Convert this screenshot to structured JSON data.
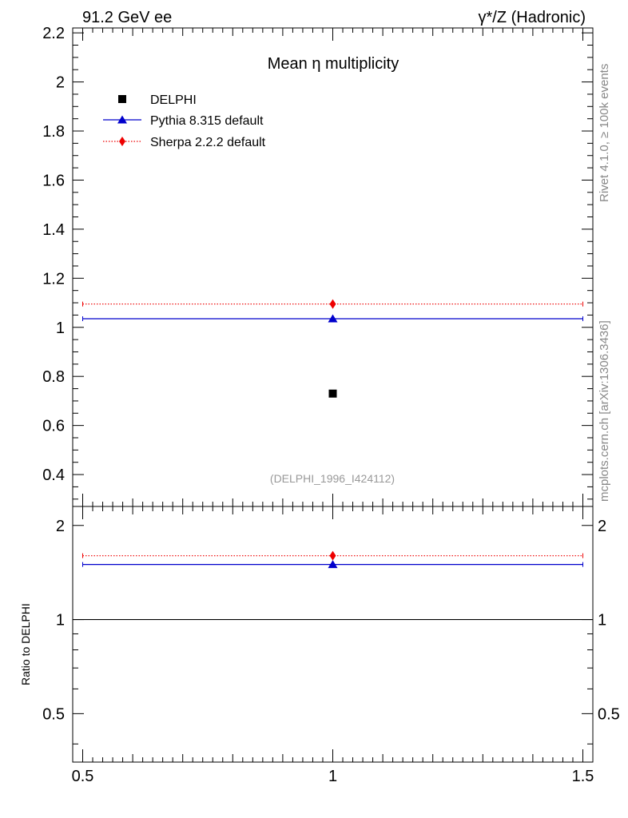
{
  "header": {
    "left_label": "91.2 GeV ee",
    "right_label": "γ*/Z (Hadronic)"
  },
  "side_labels": {
    "rivet": "Rivet 4.1.0, ≥ 100k events",
    "mcplots": "mcplots.cern.ch [arXiv:1306.3436]"
  },
  "chart_data": {
    "type": "scatter",
    "title": "Mean η multiplicity",
    "analysis_label": "(DELPHI_1996_I424112)",
    "x_range": [
      0.5,
      1.5
    ],
    "x_ticks": [
      "0.5",
      "1",
      "1.5"
    ],
    "main_panel": {
      "y_range": [
        0.27,
        2.22
      ],
      "y_ticks": [
        "0.4",
        "0.6",
        "0.8",
        "1",
        "1.2",
        "1.4",
        "1.6",
        "1.8",
        "2",
        "2.2"
      ],
      "series": [
        {
          "name": "DELPHI",
          "marker": "square",
          "color": "#000000",
          "x": 1,
          "y": 0.73,
          "x_low": 1,
          "x_high": 1,
          "line": "none"
        },
        {
          "name": "Pythia 8.315 default",
          "marker": "triangle",
          "color": "#0000cc",
          "x": 1,
          "y": 1.035,
          "x_low": 0.5,
          "x_high": 1.5,
          "line": "solid"
        },
        {
          "name": "Sherpa 2.2.2 default",
          "marker": "diamond",
          "color": "#ee0000",
          "x": 1,
          "y": 1.095,
          "x_low": 0.5,
          "x_high": 1.5,
          "line": "dotted"
        }
      ]
    },
    "ratio_panel": {
      "ylabel": "Ratio to DELPHI",
      "y_range": [
        0.35,
        2.3
      ],
      "y_ticks": [
        "0.5",
        "1",
        "2"
      ],
      "reference": 1,
      "series": [
        {
          "name": "Pythia 8.315 default",
          "color": "#0000cc",
          "marker": "triangle",
          "y": 1.5,
          "line": "solid"
        },
        {
          "name": "Sherpa 2.2.2 default",
          "color": "#ee0000",
          "marker": "diamond",
          "y": 1.6,
          "line": "dotted"
        }
      ]
    },
    "legend_position": "top-left",
    "grid": false
  }
}
